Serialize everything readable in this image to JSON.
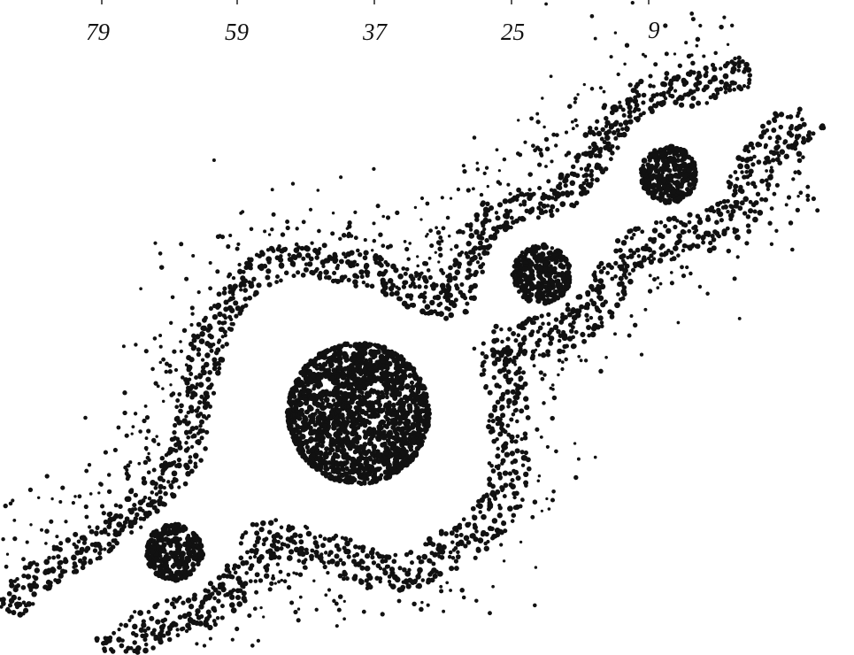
{
  "colors": {
    "ink": "#111111",
    "background": "#ffffff"
  },
  "labels": [
    {
      "id": "label-79",
      "text": "79"
    },
    {
      "id": "label-59",
      "text": "59"
    },
    {
      "id": "label-37",
      "text": "37"
    },
    {
      "id": "label-25",
      "text": "25"
    },
    {
      "id": "label-9",
      "text": "9"
    }
  ]
}
